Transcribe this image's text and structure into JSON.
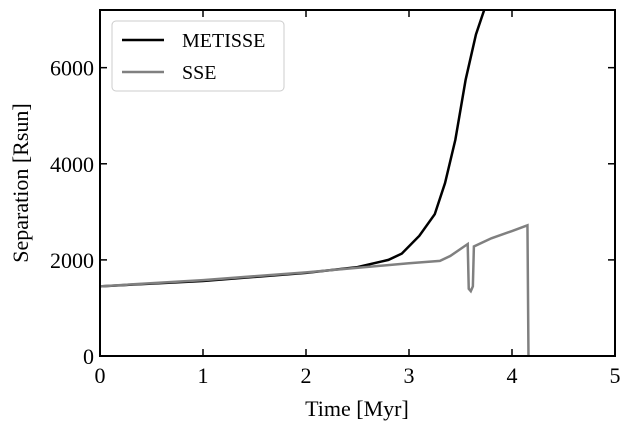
{
  "chart_data": {
    "type": "line",
    "xlabel": "Time [Myr]",
    "ylabel": "Separation [Rsun]",
    "xlim": [
      0,
      5
    ],
    "ylim": [
      0,
      7200
    ],
    "xticks": [
      0,
      1,
      2,
      3,
      4,
      5
    ],
    "yticks": [
      0,
      2000,
      4000,
      6000
    ],
    "legend": "upper left",
    "series": [
      {
        "name": "METISSE",
        "color": "#000000",
        "x": [
          0,
          1,
          2,
          2.5,
          2.8,
          2.93,
          3.1,
          3.25,
          3.35,
          3.45,
          3.55,
          3.65,
          3.73
        ],
        "values": [
          1450,
          1560,
          1730,
          1850,
          2000,
          2130,
          2500,
          2950,
          3600,
          4500,
          5750,
          6690,
          7200
        ]
      },
      {
        "name": "SSE",
        "color": "#808080",
        "x": [
          0,
          1,
          2,
          3,
          3.3,
          3.4,
          3.57,
          3.58,
          3.6,
          3.62,
          3.63,
          3.8,
          4,
          4.15,
          4.16
        ],
        "values": [
          1450,
          1580,
          1740,
          1930,
          1980,
          2080,
          2330,
          1400,
          1350,
          1450,
          2280,
          2450,
          2600,
          2720,
          0
        ]
      }
    ]
  }
}
